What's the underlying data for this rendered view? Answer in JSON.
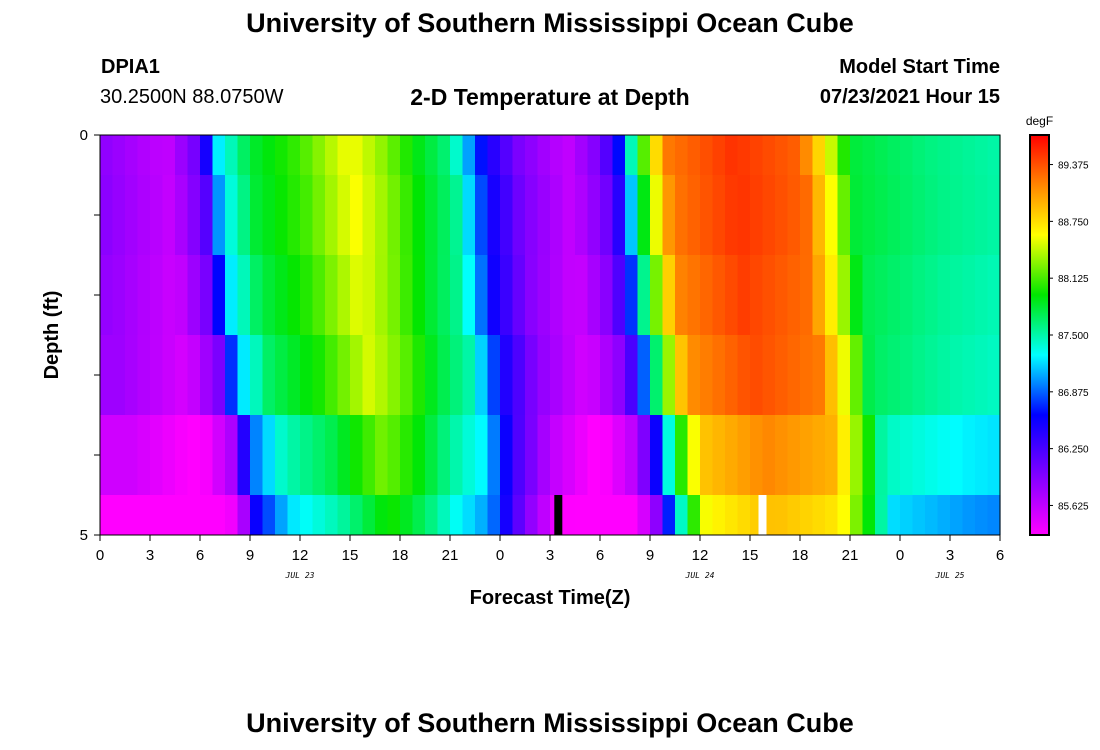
{
  "header": {
    "title": "University of Southern Mississippi Ocean Cube",
    "station_id": "DPIA1",
    "station_coords": "30.2500N  88.0750W",
    "plot_title": "2-D Temperature at Depth",
    "model_start_label": "Model Start Time",
    "model_start_value": "07/23/2021 Hour 15"
  },
  "footer": {
    "title": "University of Southern Mississippi Ocean Cube"
  },
  "chart_data": {
    "type": "heatmap",
    "title": "2-D Temperature at Depth",
    "xlabel": "Forecast Time(Z)",
    "ylabel": "Depth (ft)",
    "x_range_hours": [
      0,
      54
    ],
    "ylim": [
      0,
      5
    ],
    "y_tick_labels": [
      "0",
      "",
      "",
      "",
      "",
      "5"
    ],
    "x_tick_labels": [
      "0",
      "3",
      "6",
      "9",
      "12",
      "15",
      "18",
      "21",
      "0",
      "3",
      "6",
      "9",
      "12",
      "15",
      "18",
      "21",
      "0",
      "3",
      "6"
    ],
    "date_labels": [
      {
        "label": "JUL 23",
        "hour": 12
      },
      {
        "label": "JUL 24",
        "hour": 36
      },
      {
        "label": "JUL 25",
        "hour": 51
      }
    ],
    "colorbar": {
      "unit": "degF",
      "min": 85.3,
      "max": 89.7,
      "tick_values": [
        89.375,
        88.75,
        88.125,
        87.5,
        86.875,
        86.25,
        85.625
      ],
      "tick_labels": [
        "89.375",
        "88.750",
        "88.125",
        "87.500",
        "86.875",
        "86.250",
        "85.625"
      ]
    },
    "markers": [
      {
        "hour": 27.5,
        "color": "#000000"
      },
      {
        "hour": 39.75,
        "color": "#ffffff"
      }
    ],
    "depth_band_offsets_hours": [
      0,
      0.3,
      0.6,
      1.2,
      2.0,
      2.4
    ],
    "temperature_keyframes": [
      {
        "hour": 0,
        "degF": 85.9
      },
      {
        "hour": 4,
        "degF": 85.6
      },
      {
        "hour": 6,
        "degF": 86.1
      },
      {
        "hour": 7,
        "degF": 87.2
      },
      {
        "hour": 9,
        "degF": 87.8
      },
      {
        "hour": 12,
        "degF": 88.1
      },
      {
        "hour": 15,
        "degF": 88.6
      },
      {
        "hour": 17,
        "degF": 88.3
      },
      {
        "hour": 19,
        "degF": 87.9
      },
      {
        "hour": 21,
        "degF": 87.6
      },
      {
        "hour": 23,
        "degF": 86.6
      },
      {
        "hour": 25,
        "degF": 86.0
      },
      {
        "hour": 28,
        "degF": 85.6
      },
      {
        "hour": 30,
        "degF": 86.0
      },
      {
        "hour": 31,
        "degF": 86.5
      },
      {
        "hour": 32,
        "degF": 87.6
      },
      {
        "hour": 33,
        "degF": 88.5
      },
      {
        "hour": 34,
        "degF": 89.2
      },
      {
        "hour": 38,
        "degF": 89.5
      },
      {
        "hour": 42,
        "degF": 89.3
      },
      {
        "hour": 44,
        "degF": 88.4
      },
      {
        "hour": 45,
        "degF": 87.8
      },
      {
        "hour": 50,
        "degF": 87.6
      },
      {
        "hour": 54,
        "degF": 87.5
      }
    ],
    "depth_band_adjust_degF": [
      0,
      0,
      -0.05,
      -0.1,
      -0.35,
      -0.6
    ]
  }
}
